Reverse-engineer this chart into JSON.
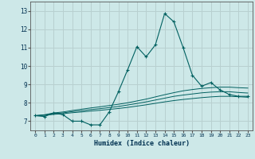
{
  "xlabel": "Humidex (Indice chaleur)",
  "ylabel": "",
  "background_color": "#cde8e8",
  "grid_color": "#b8d0d0",
  "line_color": "#006060",
  "xlim": [
    -0.5,
    23.5
  ],
  "ylim": [
    6.5,
    13.5
  ],
  "yticks": [
    7,
    8,
    9,
    10,
    11,
    12,
    13
  ],
  "xticks": [
    0,
    1,
    2,
    3,
    4,
    5,
    6,
    7,
    8,
    9,
    10,
    11,
    12,
    13,
    14,
    15,
    16,
    17,
    18,
    19,
    20,
    21,
    22,
    23
  ],
  "x": [
    0,
    1,
    2,
    3,
    4,
    5,
    6,
    7,
    8,
    9,
    10,
    11,
    12,
    13,
    14,
    15,
    16,
    17,
    18,
    19,
    20,
    21,
    22,
    23
  ],
  "y_main": [
    7.3,
    7.25,
    7.45,
    7.35,
    7.0,
    7.0,
    6.8,
    6.8,
    7.5,
    8.6,
    9.8,
    11.05,
    10.5,
    11.15,
    12.85,
    12.4,
    11.0,
    9.5,
    8.9,
    9.1,
    8.7,
    8.45,
    8.35,
    8.35
  ],
  "y_line2": [
    7.3,
    7.35,
    7.45,
    7.5,
    7.58,
    7.65,
    7.72,
    7.78,
    7.85,
    7.92,
    8.0,
    8.1,
    8.2,
    8.32,
    8.44,
    8.55,
    8.65,
    8.72,
    8.78,
    8.82,
    8.85,
    8.85,
    8.82,
    8.8
  ],
  "y_line3": [
    7.3,
    7.33,
    7.4,
    7.45,
    7.52,
    7.57,
    7.63,
    7.68,
    7.74,
    7.8,
    7.88,
    7.96,
    8.05,
    8.15,
    8.25,
    8.35,
    8.42,
    8.48,
    8.54,
    8.58,
    8.6,
    8.6,
    8.56,
    8.53
  ],
  "y_line4": [
    7.3,
    7.32,
    7.37,
    7.41,
    7.46,
    7.5,
    7.55,
    7.59,
    7.64,
    7.69,
    7.75,
    7.82,
    7.89,
    7.97,
    8.05,
    8.12,
    8.18,
    8.23,
    8.28,
    8.32,
    8.35,
    8.35,
    8.33,
    8.3
  ]
}
